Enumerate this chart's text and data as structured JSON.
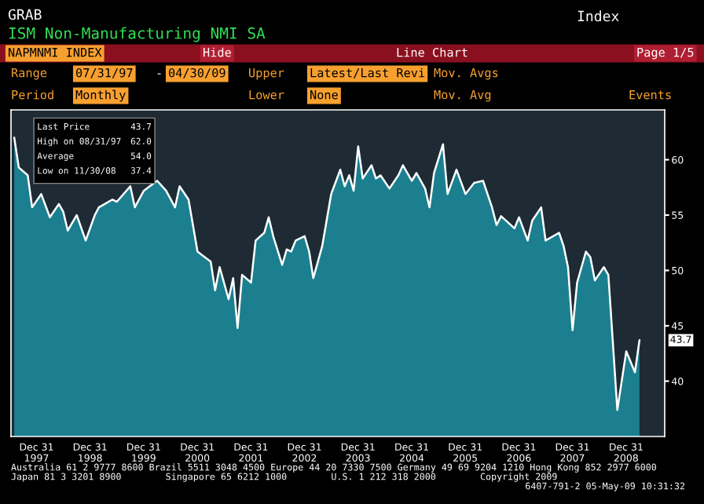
{
  "chart_data": {
    "type": "area",
    "title": "ISM Non-Manufacturing NMI SA",
    "x": [
      "1997-08",
      "1997-09",
      "1997-11",
      "1997-12",
      "1998-02",
      "1998-04",
      "1998-06",
      "1998-07",
      "1998-08",
      "1998-10",
      "1998-12",
      "1999-02",
      "1999-03",
      "1999-06",
      "1999-07",
      "1999-10",
      "1999-11",
      "2000-01",
      "2000-04",
      "2000-06",
      "2000-08",
      "2000-09",
      "2000-11",
      "2001-01",
      "2001-04",
      "2001-05",
      "2001-06",
      "2001-08",
      "2001-09",
      "2001-10",
      "2001-11",
      "2002-01",
      "2002-02",
      "2002-04",
      "2002-05",
      "2002-06",
      "2002-08",
      "2002-09",
      "2002-10",
      "2002-11",
      "2003-01",
      "2003-02",
      "2003-03",
      "2003-05",
      "2003-07",
      "2003-09",
      "2003-10",
      "2003-11",
      "2003-12",
      "2004-01",
      "2004-02",
      "2004-04",
      "2004-05",
      "2004-06",
      "2004-08",
      "2004-10",
      "2004-11",
      "2005-01",
      "2005-02",
      "2005-04",
      "2005-05",
      "2005-06",
      "2005-08",
      "2005-09",
      "2005-11",
      "2006-01",
      "2006-03",
      "2006-05",
      "2006-07",
      "2006-08",
      "2006-09",
      "2006-12",
      "2007-01",
      "2007-03",
      "2007-04",
      "2007-06",
      "2007-07",
      "2007-10",
      "2007-11",
      "2007-12",
      "2008-01",
      "2008-02",
      "2008-04",
      "2008-05",
      "2008-06",
      "2008-08",
      "2008-09",
      "2008-11",
      "2009-01",
      "2009-03",
      "2009-04"
    ],
    "series": [
      {
        "color": "#1b7f8f",
        "values": [
          62.0,
          59.3,
          58.6,
          55.7,
          56.9,
          54.8,
          56.0,
          55.3,
          53.6,
          55.0,
          52.7,
          55.0,
          55.7,
          56.4,
          56.2,
          57.6,
          55.7,
          57.2,
          58.1,
          57.2,
          55.7,
          57.6,
          56.4,
          51.7,
          50.8,
          48.2,
          50.3,
          47.4,
          49.3,
          44.8,
          49.6,
          48.9,
          52.7,
          53.4,
          54.8,
          53.1,
          50.5,
          51.9,
          51.7,
          52.7,
          53.1,
          51.7,
          49.3,
          52.2,
          56.9,
          59.1,
          57.6,
          58.6,
          57.2,
          61.2,
          58.3,
          59.5,
          58.3,
          58.6,
          57.4,
          58.6,
          59.5,
          58.1,
          58.8,
          57.4,
          55.7,
          58.8,
          61.4,
          56.9,
          59.1,
          56.9,
          57.9,
          58.1,
          55.7,
          54.1,
          54.9,
          53.8,
          54.8,
          52.7,
          54.5,
          55.7,
          52.7,
          53.4,
          52.2,
          50.3,
          44.6,
          48.9,
          51.7,
          51.2,
          49.1,
          50.3,
          49.6,
          37.4,
          42.7,
          40.8,
          43.7
        ]
      }
    ],
    "xlim": [
      "1997-07-10",
      "2009-09-20"
    ],
    "ylim": [
      35,
      64.5
    ],
    "xticks": [
      {
        "value": "1997-12-31",
        "label": "Dec 31\n1997"
      },
      {
        "value": "1998-12-31",
        "label": "Dec 31\n1998"
      },
      {
        "value": "1999-12-31",
        "label": "Dec 31\n1999"
      },
      {
        "value": "2000-12-31",
        "label": "Dec 31\n2000"
      },
      {
        "value": "2001-12-31",
        "label": "Dec 31\n2001"
      },
      {
        "value": "2002-12-31",
        "label": "Dec 31\n2002"
      },
      {
        "value": "2003-12-31",
        "label": "Dec 31\n2003"
      },
      {
        "value": "2004-12-31",
        "label": "Dec 31\n2004"
      },
      {
        "value": "2005-12-31",
        "label": "Dec 31\n2005"
      },
      {
        "value": "2006-12-31",
        "label": "Dec 31\n2006"
      },
      {
        "value": "2007-12-31",
        "label": "Dec 31\n2007"
      },
      {
        "value": "2008-12-31",
        "label": "Dec 31\n2008"
      }
    ],
    "yticks": [
      40,
      45,
      50,
      55,
      60
    ],
    "grid": false,
    "legend": false,
    "annotations": [
      "GRAB",
      "Index",
      "NAPMNMI INDEX",
      "Hide",
      "Line Chart",
      "Page 1/5",
      "Range",
      "07/31/97",
      "-",
      "04/30/09",
      "Upper",
      "Latest/Last Revi",
      "Mov. Avgs",
      "Period",
      "Monthly",
      "Lower",
      "None",
      "Mov. Avg",
      "Events",
      "Last Price",
      "43.7",
      "High on 08/31/97",
      "62.0",
      "Average",
      "54.0",
      "Low on 11/30/08",
      "37.4",
      "43.7",
      "Australia 61 2 9777 8600 Brazil 5511 3048 4500 Europe 44 20 7330 7500 Germany 49 69 9204 1210 Hong Kong 852 2977 6000",
      "Japan 81 3 3201 8900        Singapore 65 6212 1000        U.S. 1 212 318 2000        Copyright 2009",
      "6407-791-2 05-May-09 10:31:32"
    ]
  }
}
